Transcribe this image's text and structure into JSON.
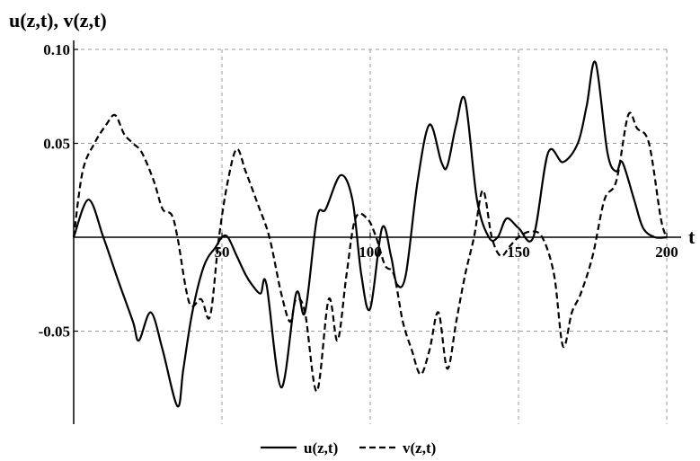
{
  "chart_data": {
    "type": "line",
    "ylabel": "u(z,t), v(z,t)",
    "xlabel": "t",
    "xlim": [
      0,
      200
    ],
    "ylim": [
      -0.1,
      0.1
    ],
    "grid": true,
    "legend_position": "bottom-center",
    "x_ticks": [
      {
        "value": 50,
        "label": "50"
      },
      {
        "value": 100,
        "label": "100"
      },
      {
        "value": 150,
        "label": "150"
      },
      {
        "value": 200,
        "label": "200"
      }
    ],
    "y_ticks": [
      {
        "value": 0.1,
        "label": "0.10"
      },
      {
        "value": 0.05,
        "label": "0.05"
      },
      {
        "value": -0.05,
        "label": "-0.05"
      }
    ],
    "series": [
      {
        "name": "u(z,t)",
        "style": "solid",
        "color": "#000000",
        "x": [
          0,
          5,
          10,
          15,
          20,
          22,
          26,
          30,
          35,
          37,
          40,
          44,
          48,
          50,
          52,
          55,
          58,
          60,
          63,
          65,
          70,
          75,
          78,
          82,
          85,
          90,
          94,
          97,
          100,
          104,
          107,
          109,
          112,
          116,
          120,
          124,
          126,
          129,
          132,
          136,
          140,
          143,
          146,
          150,
          155,
          160,
          165,
          170,
          173,
          176,
          180,
          183,
          185,
          189,
          192,
          196,
          200
        ],
        "y": [
          0.0,
          0.02,
          0.0,
          -0.023,
          -0.045,
          -0.055,
          -0.04,
          -0.06,
          -0.09,
          -0.07,
          -0.04,
          -0.015,
          -0.005,
          0.0,
          0.0,
          -0.01,
          -0.02,
          -0.025,
          -0.03,
          -0.025,
          -0.08,
          -0.03,
          -0.04,
          0.01,
          0.015,
          0.033,
          0.02,
          -0.02,
          -0.038,
          0.005,
          -0.01,
          -0.025,
          -0.02,
          0.03,
          0.06,
          0.04,
          0.038,
          0.06,
          0.073,
          0.02,
          0.0,
          0.0,
          0.01,
          0.005,
          0.0,
          0.045,
          0.04,
          0.05,
          0.07,
          0.093,
          0.045,
          0.035,
          0.04,
          0.02,
          0.005,
          0.0,
          0.0
        ]
      },
      {
        "name": "v(z,t)",
        "style": "dashed",
        "color": "#000000",
        "x": [
          0,
          3,
          7,
          11,
          14,
          17,
          20,
          23,
          27,
          30,
          33,
          35,
          39,
          43,
          46,
          49,
          52,
          55,
          58,
          62,
          66,
          70,
          73,
          75,
          78,
          82,
          86,
          89,
          92,
          95,
          99,
          102,
          105,
          108,
          111,
          114,
          117,
          120,
          123,
          126,
          129,
          132,
          135,
          138,
          141,
          144,
          147,
          150,
          154,
          158,
          162,
          165,
          168,
          171,
          175,
          179,
          183,
          187,
          190,
          194,
          198,
          200
        ],
        "y": [
          0.0,
          0.035,
          0.05,
          0.06,
          0.065,
          0.055,
          0.05,
          0.045,
          0.03,
          0.015,
          0.012,
          0.0,
          -0.035,
          -0.033,
          -0.042,
          0.0,
          0.03,
          0.047,
          0.035,
          0.018,
          0.0,
          -0.03,
          -0.045,
          -0.033,
          -0.04,
          -0.082,
          -0.033,
          -0.055,
          -0.02,
          0.01,
          0.01,
          0.0,
          -0.015,
          -0.02,
          -0.045,
          -0.06,
          -0.073,
          -0.06,
          -0.04,
          -0.07,
          -0.045,
          -0.02,
          0.0,
          0.025,
          0.0,
          -0.01,
          -0.005,
          0.0,
          0.003,
          0.0,
          -0.02,
          -0.058,
          -0.04,
          -0.03,
          -0.01,
          0.02,
          0.03,
          0.065,
          0.058,
          0.05,
          0.01,
          0.0
        ]
      }
    ]
  }
}
